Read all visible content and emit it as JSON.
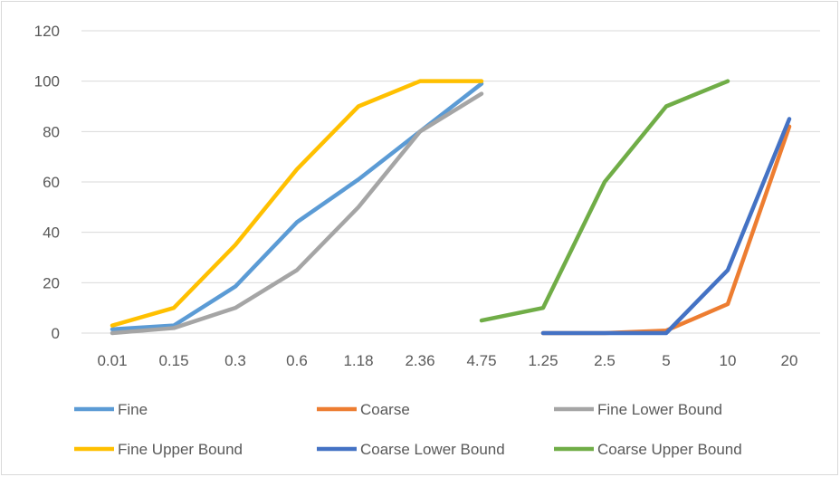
{
  "chart_data": {
    "type": "line",
    "title": "",
    "xlabel": "",
    "ylabel": "",
    "categories": [
      "0.01",
      "0.15",
      "0.3",
      "0.6",
      "1.18",
      "2.36",
      "4.75",
      "1.25",
      "2.5",
      "5",
      "10",
      "20"
    ],
    "ylim": [
      0,
      120
    ],
    "yticks": [
      "0",
      "20",
      "40",
      "60",
      "80",
      "100",
      "120"
    ],
    "grid": true,
    "legend_position": "bottom",
    "series": [
      {
        "name": "Fine",
        "color": "#5b9bd5",
        "values": [
          1.5,
          3,
          18.5,
          44,
          61,
          80,
          99,
          null,
          null,
          null,
          null,
          null
        ]
      },
      {
        "name": "Coarse",
        "color": "#ed7d31",
        "values": [
          null,
          null,
          null,
          null,
          null,
          null,
          null,
          0,
          0,
          1,
          11.5,
          82
        ]
      },
      {
        "name": "Fine Lower Bound",
        "color": "#a5a5a5",
        "values": [
          0,
          2,
          10,
          25,
          50,
          80,
          95,
          null,
          null,
          null,
          null,
          null
        ]
      },
      {
        "name": "Fine Upper Bound",
        "color": "#ffc000",
        "values": [
          3,
          10,
          35,
          65,
          90,
          100,
          100,
          null,
          null,
          null,
          null,
          null
        ]
      },
      {
        "name": "Coarse Lower Bound",
        "color": "#4472c4",
        "values": [
          null,
          null,
          null,
          null,
          null,
          null,
          null,
          0,
          0,
          0,
          25,
          85
        ]
      },
      {
        "name": "Coarse Upper Bound",
        "color": "#70ad47",
        "values": [
          null,
          null,
          null,
          null,
          null,
          null,
          5,
          10,
          60,
          90,
          100,
          null
        ]
      }
    ]
  }
}
